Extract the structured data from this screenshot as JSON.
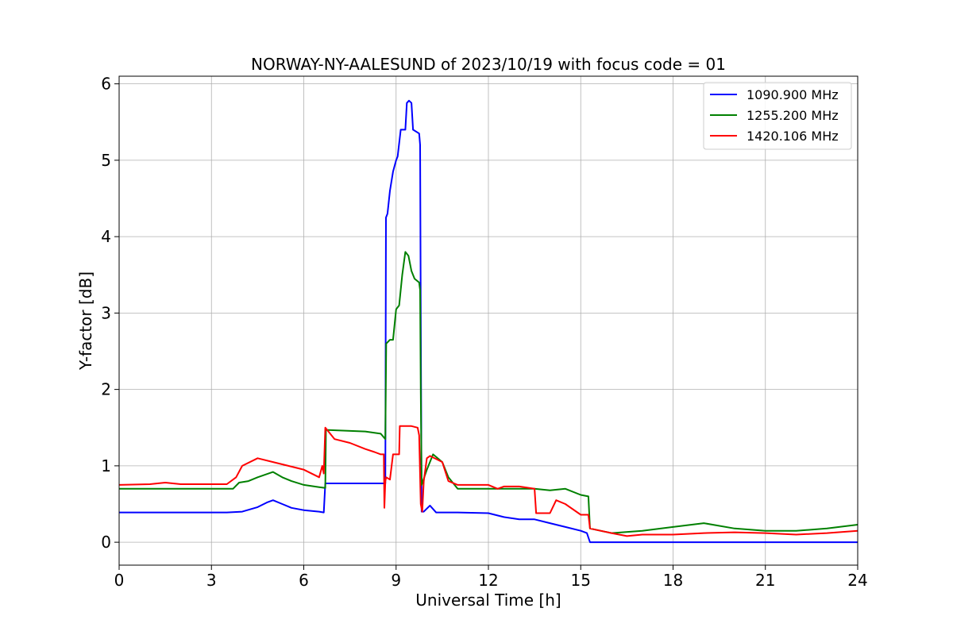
{
  "chart_data": {
    "type": "line",
    "title": "NORWAY-NY-AALESUND of 2023/10/19 with focus code = 01",
    "xlabel": "Universal Time [h]",
    "ylabel": "Y-factor [dB]",
    "xlim": [
      0,
      24
    ],
    "ylim": [
      -0.3,
      6.1
    ],
    "xticks": [
      0,
      3,
      6,
      9,
      12,
      15,
      18,
      21,
      24
    ],
    "yticks": [
      0,
      1,
      2,
      3,
      4,
      5,
      6
    ],
    "grid": true,
    "legend_position": "top-right",
    "series": [
      {
        "name": "1090.900 MHz",
        "color": "#0000ff",
        "x": [
          0,
          3.5,
          4.0,
          4.5,
          4.8,
          5.0,
          5.3,
          5.6,
          6.0,
          6.5,
          6.65,
          6.7,
          8.0,
          8.65,
          8.67,
          8.72,
          8.8,
          8.9,
          9.0,
          9.05,
          9.15,
          9.3,
          9.35,
          9.42,
          9.5,
          9.55,
          9.75,
          9.78,
          9.8,
          9.83,
          9.9,
          10.1,
          10.3,
          11.0,
          12.0,
          12.5,
          13.0,
          13.5,
          14.0,
          14.5,
          15.0,
          15.2,
          15.3,
          16.0,
          18.0,
          21.0,
          23.0,
          24.0
        ],
        "y": [
          0.39,
          0.39,
          0.4,
          0.46,
          0.52,
          0.55,
          0.5,
          0.45,
          0.42,
          0.4,
          0.39,
          0.77,
          0.77,
          0.77,
          4.25,
          4.3,
          4.6,
          4.85,
          5.0,
          5.05,
          5.4,
          5.4,
          5.75,
          5.78,
          5.75,
          5.4,
          5.35,
          5.2,
          3.0,
          0.4,
          0.4,
          0.48,
          0.39,
          0.39,
          0.38,
          0.33,
          0.3,
          0.3,
          0.25,
          0.2,
          0.15,
          0.12,
          0.0,
          0.0,
          0.0,
          0.0,
          0.0,
          0.0
        ]
      },
      {
        "name": "1255.200 MHz",
        "color": "#008000",
        "x": [
          0,
          3.7,
          3.9,
          4.2,
          4.5,
          5.0,
          5.3,
          5.6,
          6.0,
          6.5,
          6.7,
          6.72,
          8.0,
          8.5,
          8.65,
          8.68,
          8.8,
          8.9,
          9.0,
          9.1,
          9.2,
          9.3,
          9.4,
          9.5,
          9.6,
          9.75,
          9.78,
          9.8,
          9.83,
          10.0,
          10.2,
          10.5,
          10.7,
          11.0,
          12.2,
          13.5,
          14.0,
          14.5,
          15.0,
          15.25,
          15.3,
          16.0,
          17.0,
          18.0,
          19.0,
          20.0,
          21.0,
          22.0,
          23.0,
          24.0
        ],
        "y": [
          0.7,
          0.7,
          0.78,
          0.8,
          0.85,
          0.92,
          0.85,
          0.8,
          0.75,
          0.72,
          0.71,
          1.47,
          1.45,
          1.42,
          1.35,
          2.6,
          2.65,
          2.65,
          3.05,
          3.1,
          3.5,
          3.8,
          3.75,
          3.55,
          3.45,
          3.4,
          3.3,
          2.0,
          0.75,
          0.95,
          1.15,
          1.05,
          0.85,
          0.7,
          0.7,
          0.7,
          0.68,
          0.7,
          0.62,
          0.6,
          0.18,
          0.12,
          0.15,
          0.2,
          0.25,
          0.18,
          0.15,
          0.15,
          0.18,
          0.23
        ]
      },
      {
        "name": "1420.106 MHz",
        "color": "#ff0000",
        "x": [
          0,
          1.0,
          1.5,
          2.0,
          3.5,
          3.8,
          4.0,
          4.5,
          5.0,
          5.5,
          6.0,
          6.5,
          6.6,
          6.65,
          6.7,
          7.0,
          7.5,
          8.0,
          8.3,
          8.5,
          8.6,
          8.62,
          8.65,
          8.68,
          8.8,
          8.9,
          9.1,
          9.12,
          9.5,
          9.7,
          9.75,
          9.8,
          9.85,
          9.9,
          10.0,
          10.1,
          10.5,
          10.7,
          11.0,
          12.0,
          12.3,
          12.5,
          13.0,
          13.5,
          13.55,
          14.0,
          14.2,
          14.5,
          15.0,
          15.25,
          15.3,
          16.0,
          16.5,
          17.0,
          18.0,
          19.0,
          20.0,
          21.0,
          22.0,
          23.0,
          24.0
        ],
        "y": [
          0.75,
          0.76,
          0.78,
          0.76,
          0.76,
          0.85,
          1.0,
          1.1,
          1.05,
          1.0,
          0.95,
          0.85,
          1.0,
          0.9,
          1.5,
          1.35,
          1.3,
          1.22,
          1.18,
          1.15,
          1.15,
          0.45,
          0.8,
          0.85,
          0.82,
          1.15,
          1.15,
          1.52,
          1.52,
          1.5,
          1.4,
          0.5,
          0.4,
          0.8,
          1.1,
          1.13,
          1.05,
          0.8,
          0.75,
          0.75,
          0.7,
          0.73,
          0.73,
          0.7,
          0.38,
          0.38,
          0.55,
          0.5,
          0.36,
          0.36,
          0.18,
          0.12,
          0.08,
          0.1,
          0.1,
          0.12,
          0.13,
          0.12,
          0.1,
          0.12,
          0.15
        ]
      }
    ]
  }
}
